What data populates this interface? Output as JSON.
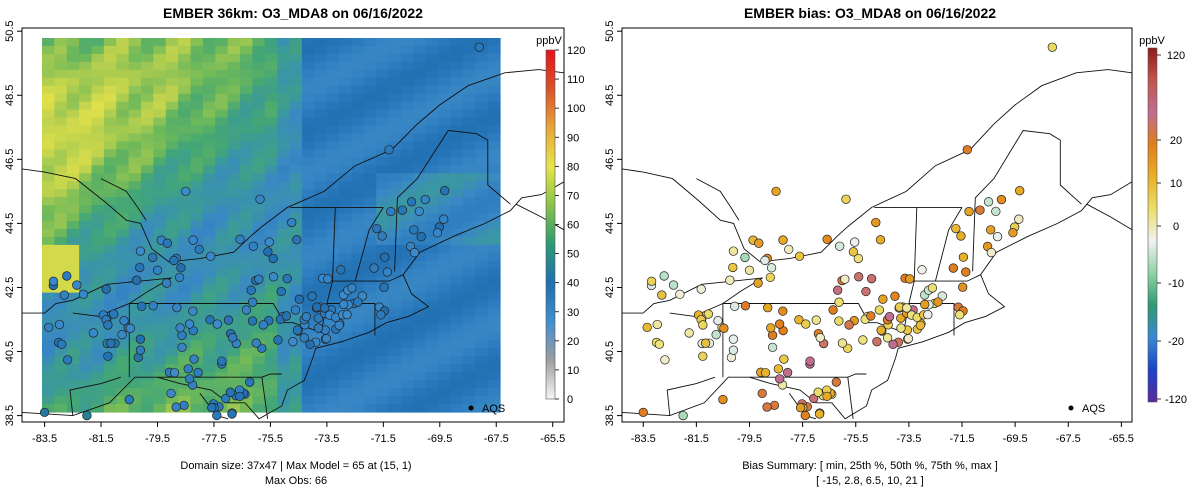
{
  "chart_data": [
    {
      "type": "heatmap",
      "title": "EMBER 36km: O3_MDA8 on 06/16/2022",
      "x_ticks": [
        "-83.5",
        "-81.5",
        "-79.5",
        "-77.5",
        "-75.5",
        "-73.5",
        "-71.5",
        "-69.5",
        "-67.5",
        "-65.5"
      ],
      "y_ticks": [
        "38.5",
        "40.5",
        "42.5",
        "44.5",
        "46.5",
        "48.5",
        "50.5"
      ],
      "xlim": [
        -84.3,
        -65.1
      ],
      "ylim": [
        38.3,
        50.6
      ],
      "legend_label": "AQS",
      "colorbar": {
        "unit": "ppbV",
        "ticks": [
          "0",
          "10",
          "20",
          "30",
          "40",
          "50",
          "60",
          "70",
          "80",
          "90",
          "100",
          "110",
          "120"
        ],
        "range": [
          0,
          120
        ],
        "stops": [
          "#f7f7f7",
          "#9e9e9e",
          "#3f8fd0",
          "#1f6fb0",
          "#2e9a73",
          "#8ac24b",
          "#e6e64a",
          "#e9a43a",
          "#d9532a",
          "#e5121a"
        ]
      },
      "footer": [
        "Domain size: 37x47 | Max Model = 65 at (15, 1)",
        "Max Obs: 66"
      ]
    },
    {
      "type": "scatter",
      "title": "EMBER bias: O3_MDA8 on 06/16/2022",
      "x_ticks": [
        "-83.5",
        "-81.5",
        "-79.5",
        "-77.5",
        "-75.5",
        "-73.5",
        "-71.5",
        "-69.5",
        "-67.5",
        "-65.5"
      ],
      "y_ticks": [
        "38.5",
        "40.5",
        "42.5",
        "44.5",
        "46.5",
        "48.5",
        "50.5"
      ],
      "xlim": [
        -84.3,
        -65.1
      ],
      "ylim": [
        38.3,
        50.6
      ],
      "legend_label": "AQS",
      "colorbar": {
        "unit": "ppbV",
        "ticks": [
          "120",
          "20",
          "10",
          "0",
          "-10",
          "-20",
          "-120"
        ],
        "stops": [
          "#8e1b1b",
          "#c2554c",
          "#c06c92",
          "#e07e1c",
          "#e8b028",
          "#ecdf6a",
          "#f1f1f1",
          "#8fd3a5",
          "#2e9a73",
          "#3a88d2",
          "#1a44c8",
          "#5a2a9c"
        ]
      },
      "footer": [
        "Bias Summary: [ min, 25th %, 50th %, 75th %, max ]",
        "[ -15,  2.8,  6.5,  10,  21 ]"
      ]
    }
  ]
}
